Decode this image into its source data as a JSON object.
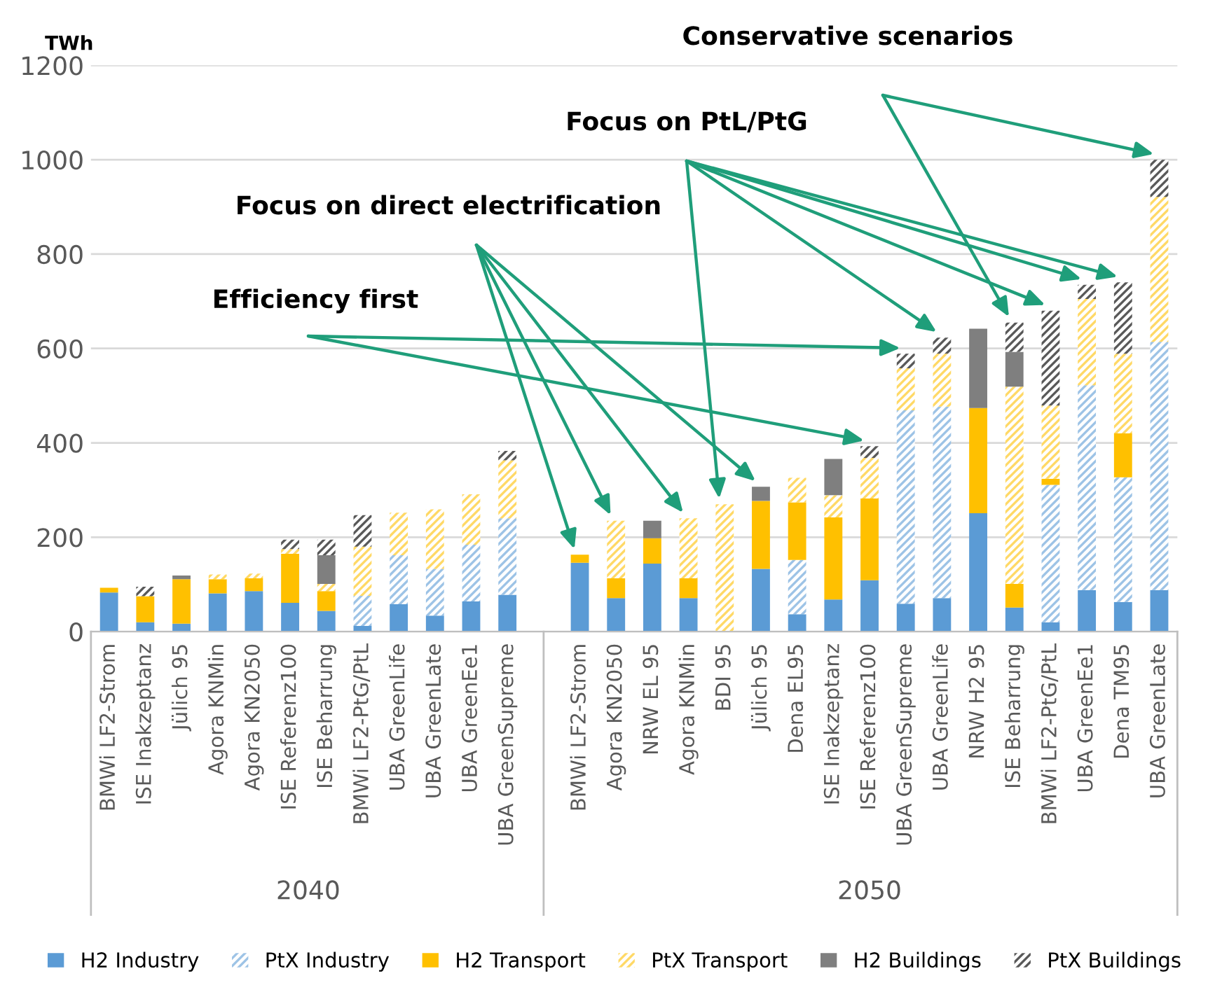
{
  "chart_data": {
    "type": "bar",
    "stacked": true,
    "ylabel": "TWh",
    "categories": [
      "BMWi LF2-Strom",
      "ISE Inakzeptanz",
      "Jülich 95",
      "Agora KNMin",
      "Agora KN2050",
      "ISE Referenz100",
      "ISE Beharrung",
      "BMWi LF2-PtG/PtL",
      "UBA GreenLife",
      "UBA GreenLate",
      "UBA GreenEe1",
      "UBA GreenSupreme",
      null,
      "BMWi LF2-Strom",
      "Agora KN2050",
      "NRW EL 95",
      "Agora KNMin",
      "BDI 95",
      "Jülich 95",
      "Dena EL95",
      "ISE Inakzeptanz",
      "ISE Referenz100",
      "UBA GreenSupreme",
      "UBA GreenLife",
      "NRW H2 95",
      "ISE Beharrung",
      "BMWi LF2-PtG/PtL",
      "UBA GreenEe1",
      "Dena TM95",
      "UBA GreenLate"
    ],
    "series": [
      {
        "name": "H2 Industry",
        "color": "#5b9bd5",
        "values": [
          83,
          20,
          17,
          81,
          86,
          61,
          44,
          12,
          58,
          34,
          64,
          78,
          null,
          146,
          71,
          144,
          71,
          0,
          133,
          37,
          68,
          109,
          59,
          71,
          251,
          51,
          20,
          88,
          63,
          88
        ]
      },
      {
        "name": "PtX Industry",
        "color": "#9dc3e6",
        "values": [
          0,
          0,
          0,
          0,
          0,
          0,
          0,
          64,
          104,
          99,
          120,
          162,
          null,
          0,
          0,
          0,
          0,
          0,
          0,
          115,
          0,
          0,
          410,
          406,
          0,
          0,
          291,
          434,
          264,
          526
        ]
      },
      {
        "name": "H2 Transport",
        "color": "#ffc000",
        "values": [
          10,
          55,
          94,
          30,
          27,
          104,
          42,
          0,
          0,
          0,
          0,
          0,
          null,
          17,
          42,
          54,
          42,
          0,
          144,
          122,
          174,
          173,
          0,
          0,
          223,
          50,
          13,
          0,
          93,
          0
        ]
      },
      {
        "name": "PtX Transport",
        "color": "#ffd966",
        "values": [
          0,
          0,
          0,
          10,
          10,
          10,
          15,
          104,
          90,
          126,
          107,
          123,
          null,
          0,
          122,
          0,
          127,
          270,
          0,
          52,
          47,
          86,
          89,
          112,
          0,
          418,
          155,
          183,
          169,
          307
        ]
      },
      {
        "name": "H2 Buildings",
        "color": "#7f7f7f",
        "values": [
          0,
          0,
          8,
          0,
          0,
          0,
          61,
          0,
          0,
          0,
          0,
          0,
          null,
          0,
          0,
          37,
          0,
          0,
          30,
          0,
          77,
          0,
          0,
          0,
          168,
          74,
          0,
          0,
          0,
          0
        ]
      },
      {
        "name": "PtX Buildings",
        "color": "#595959",
        "values": [
          0,
          20,
          0,
          0,
          0,
          20,
          33,
          67,
          0,
          0,
          0,
          20,
          null,
          0,
          0,
          0,
          0,
          0,
          0,
          0,
          0,
          25,
          31,
          34,
          0,
          62,
          201,
          30,
          151,
          79
        ]
      }
    ],
    "ylim": [
      0,
      1200
    ],
    "yticks": [
      0,
      200,
      400,
      600,
      800,
      1000,
      1200
    ],
    "grid": "y",
    "legend": "bottom",
    "annotations": [
      "Conservative scenarios",
      "Focus on PtL/PtG",
      "Focus on direct electrification",
      "Efficiency first",
      "2040",
      "2050"
    ]
  }
}
